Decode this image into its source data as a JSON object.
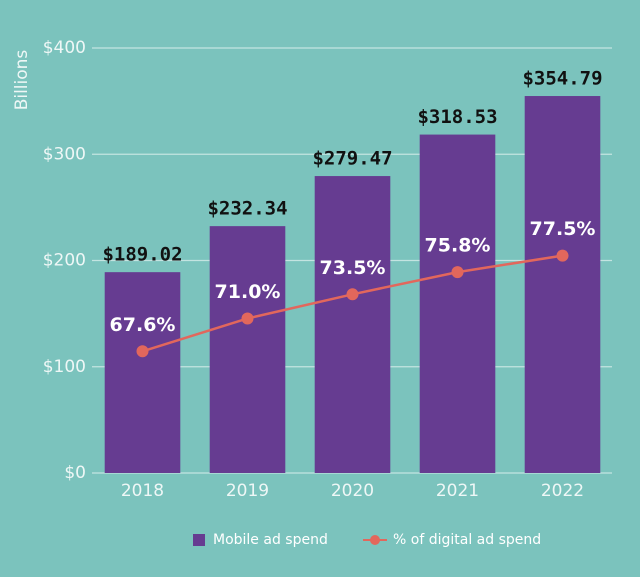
{
  "chart_data": {
    "type": "bar",
    "y_axis_label": "Billions",
    "categories": [
      "2018",
      "2019",
      "2020",
      "2021",
      "2022"
    ],
    "series": [
      {
        "name": "Mobile ad spend",
        "type": "bar",
        "color": "#663c91",
        "values": [
          189.02,
          232.34,
          279.47,
          318.53,
          354.79
        ],
        "value_labels": [
          "$189.02",
          "$232.34",
          "$279.47",
          "$318.53",
          "$354.79"
        ]
      },
      {
        "name": "% of digital ad spend",
        "type": "line",
        "color": "#e2675c",
        "axis": "y2",
        "values": [
          67.6,
          71.0,
          73.5,
          75.8,
          77.5
        ],
        "value_labels": [
          "67.6%",
          "71.0%",
          "73.5%",
          "75.8%",
          "77.5%"
        ]
      }
    ],
    "ylim": [
      0,
      400
    ],
    "yticks": [
      {
        "value": 0,
        "label": "$0"
      },
      {
        "value": 100,
        "label": "$100"
      },
      {
        "value": 200,
        "label": "$200"
      },
      {
        "value": 300,
        "label": "$300"
      },
      {
        "value": 400,
        "label": "$400"
      }
    ],
    "y2lim": [
      55,
      99
    ],
    "grid": true,
    "legend": "bottom"
  }
}
